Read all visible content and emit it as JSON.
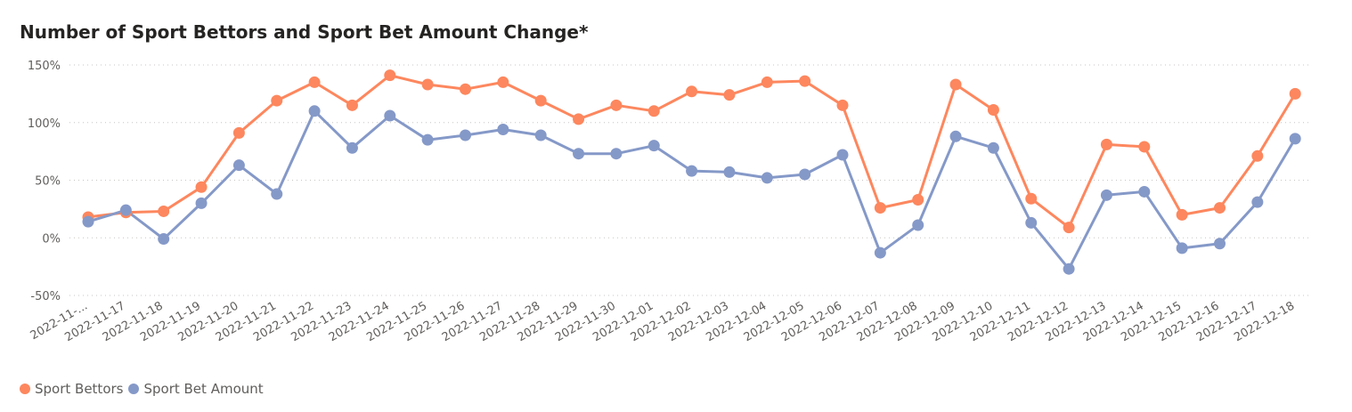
{
  "title": "Number of Sport Bettors and Sport Bet Amount Change*",
  "chart_data": {
    "type": "line",
    "title": "Number of Sport Bettors and Sport Bet Amount Change*",
    "xlabel": "",
    "ylabel": "",
    "ylim": [
      -50,
      150
    ],
    "y_ticks": [
      150,
      100,
      50,
      0,
      -50
    ],
    "y_tick_labels": [
      "150%",
      "100%",
      "50%",
      "0%",
      "-50%"
    ],
    "grid": "horizontal dotted",
    "legend_position": "bottom-left",
    "categories": [
      "2022-11-...",
      "2022-11-17",
      "2022-11-18",
      "2022-11-19",
      "2022-11-20",
      "2022-11-21",
      "2022-11-22",
      "2022-11-23",
      "2022-11-24",
      "2022-11-25",
      "2022-11-26",
      "2022-11-27",
      "2022-11-28",
      "2022-11-29",
      "2022-11-30",
      "2022-12-01",
      "2022-12-02",
      "2022-12-03",
      "2022-12-04",
      "2022-12-05",
      "2022-12-06",
      "2022-12-07",
      "2022-12-08",
      "2022-12-09",
      "2022-12-10",
      "2022-12-11",
      "2022-12-12",
      "2022-12-13",
      "2022-12-14",
      "2022-12-15",
      "2022-12-16",
      "2022-12-17",
      "2022-12-18"
    ],
    "series": [
      {
        "name": "Sport Bettors",
        "color": "#FD875E",
        "values": [
          18,
          22,
          23,
          44,
          91,
          119,
          135,
          115,
          141,
          133,
          129,
          135,
          119,
          103,
          115,
          110,
          127,
          124,
          135,
          136,
          115,
          26,
          33,
          133,
          111,
          34,
          9,
          81,
          79,
          20,
          26,
          71,
          125
        ]
      },
      {
        "name": "Sport Bet Amount",
        "color": "#8599C8",
        "values": [
          14,
          24,
          -1,
          30,
          63,
          38,
          110,
          78,
          106,
          85,
          89,
          94,
          89,
          73,
          73,
          80,
          58,
          57,
          52,
          55,
          72,
          -13,
          11,
          88,
          78,
          13,
          -27,
          37,
          40,
          -9,
          -5,
          31,
          86
        ]
      }
    ]
  }
}
